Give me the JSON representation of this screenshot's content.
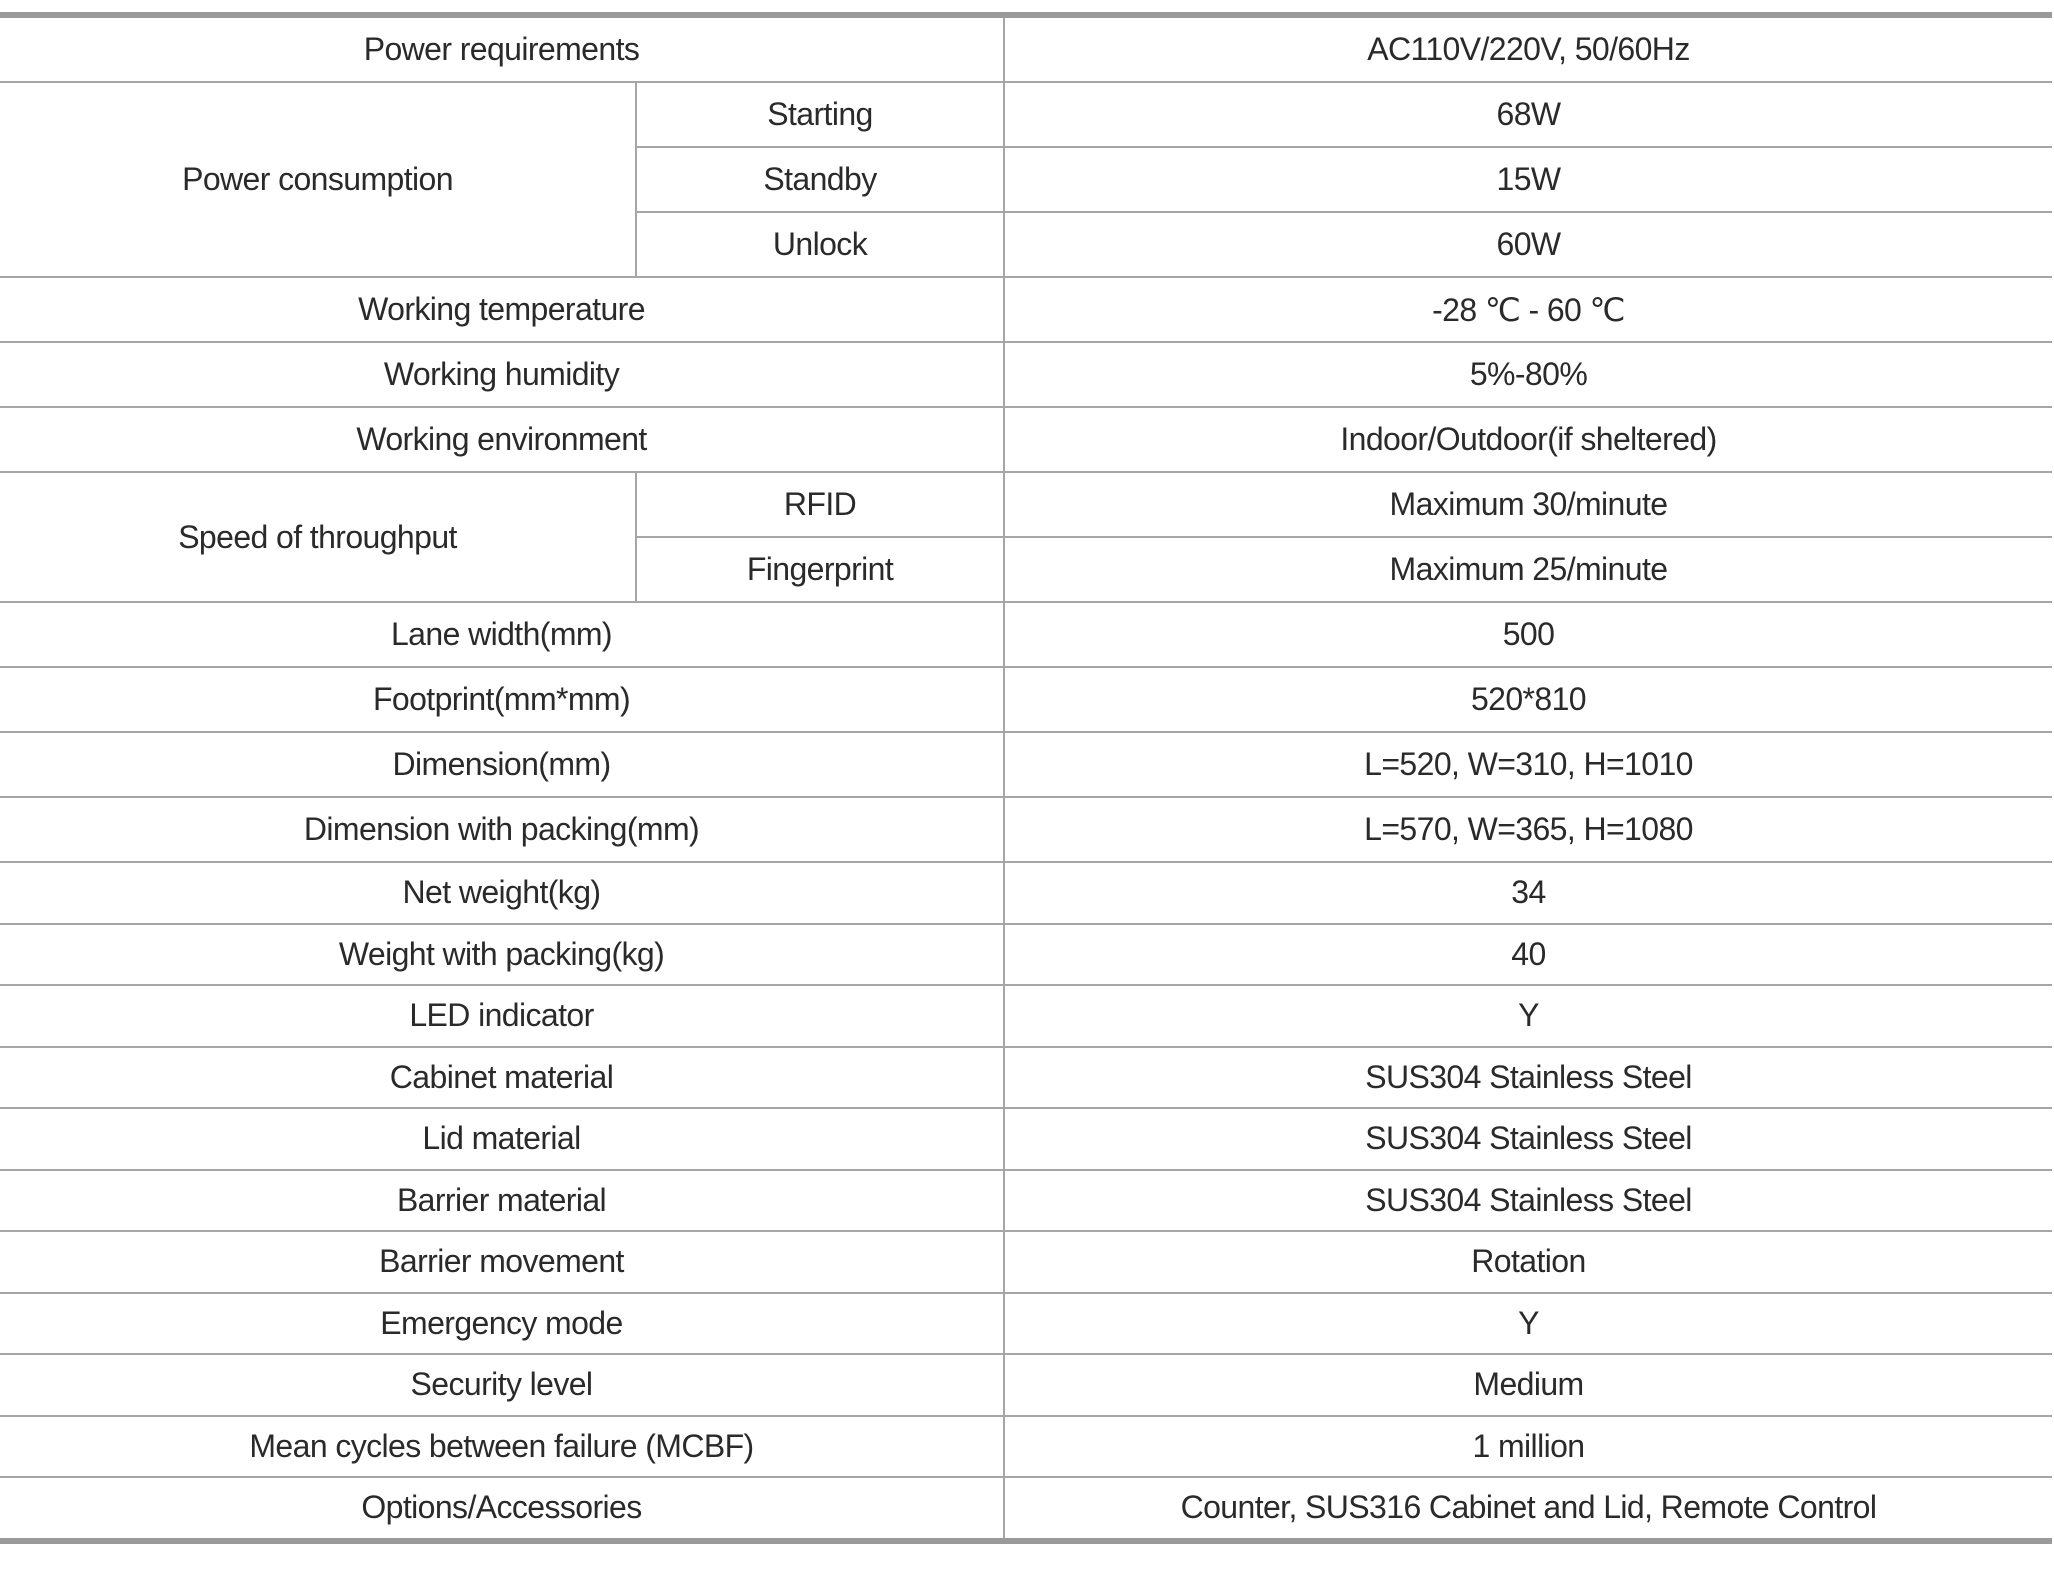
{
  "spec_table": {
    "rows": [
      {
        "label": "Power requirements",
        "value": "AC110V/220V, 50/60Hz"
      },
      {
        "label": "Power consumption",
        "sub": [
          {
            "label": "Starting",
            "value": "68W"
          },
          {
            "label": "Standby",
            "value": "15W"
          },
          {
            "label": "Unlock",
            "value": "60W"
          }
        ]
      },
      {
        "label": "Working temperature",
        "value": "-28 ℃ - 60 ℃"
      },
      {
        "label": "Working humidity",
        "value": "5%-80%"
      },
      {
        "label": "Working environment",
        "value": "Indoor/Outdoor(if sheltered)"
      },
      {
        "label": "Speed of throughput",
        "sub": [
          {
            "label": "RFID",
            "value": "Maximum 30/minute"
          },
          {
            "label": "Fingerprint",
            "value": "Maximum 25/minute"
          }
        ]
      },
      {
        "label": "Lane width(mm)",
        "value": "500"
      },
      {
        "label": "Footprint(mm*mm)",
        "value": "520*810"
      },
      {
        "label": "Dimension(mm)",
        "value": "L=520, W=310, H=1010"
      },
      {
        "label": "Dimension with packing(mm)",
        "value": "L=570, W=365, H=1080"
      },
      {
        "label": "Net weight(kg)",
        "value": "34"
      },
      {
        "label": "Weight with packing(kg)",
        "value": "40"
      },
      {
        "label": "LED indicator",
        "value": "Y"
      },
      {
        "label": "Cabinet material",
        "value": "SUS304 Stainless Steel"
      },
      {
        "label": "Lid material",
        "value": "SUS304 Stainless Steel"
      },
      {
        "label": "Barrier material",
        "value": "SUS304 Stainless Steel"
      },
      {
        "label": "Barrier movement",
        "value": "Rotation"
      },
      {
        "label": "Emergency mode",
        "value": "Y"
      },
      {
        "label": "Security level",
        "value": "Medium"
      },
      {
        "label": "Mean cycles between failure (MCBF)",
        "value": "1 million"
      },
      {
        "label": "Options/Accessories",
        "value": "Counter, SUS316 Cabinet and Lid, Remote Control"
      }
    ]
  }
}
